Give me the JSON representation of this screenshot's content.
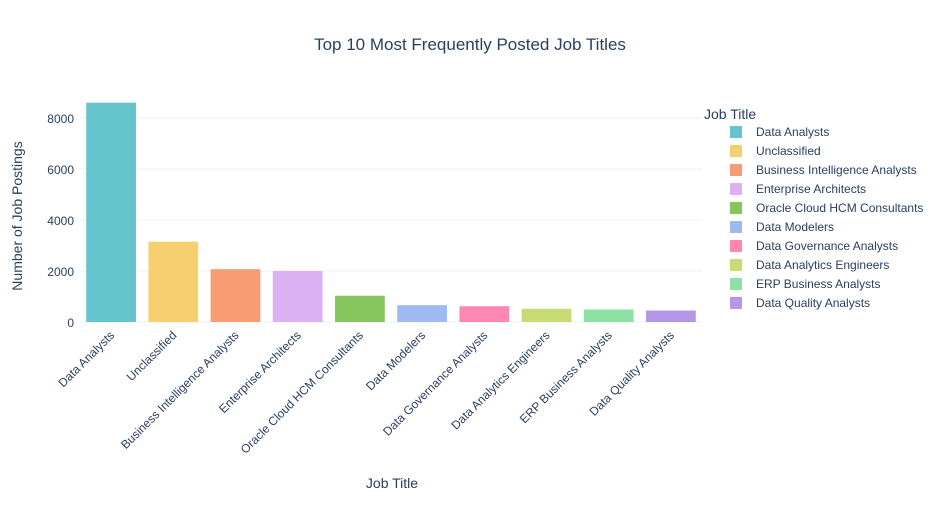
{
  "chart_data": {
    "type": "bar",
    "title": "Top 10 Most Frequently Posted Job Titles",
    "xlabel": "Job Title",
    "ylabel": "Number of Job Postings",
    "ylim": [
      0,
      8900
    ],
    "yticks": [
      0,
      2000,
      4000,
      6000,
      8000
    ],
    "grid": true,
    "legend": {
      "title": "Job Title",
      "placement": "right"
    },
    "categories": [
      "Data Analysts",
      "Unclassified",
      "Business Intelligence Analysts",
      "Enterprise Architects",
      "Oracle Cloud HCM Consultants",
      "Data Modelers",
      "Data Governance Analysts",
      "Data Analytics Engineers",
      "ERP Business Analysts",
      "Data Quality Analysts"
    ],
    "values": [
      8600,
      3150,
      2070,
      2000,
      1030,
      660,
      620,
      520,
      490,
      450
    ],
    "colors": [
      "#66C5CC",
      "#F6CF71",
      "#F89C74",
      "#DCB0F2",
      "#87C55F",
      "#9EB9F3",
      "#FE88B1",
      "#C9DB74",
      "#8BE0A4",
      "#B497E7"
    ]
  }
}
